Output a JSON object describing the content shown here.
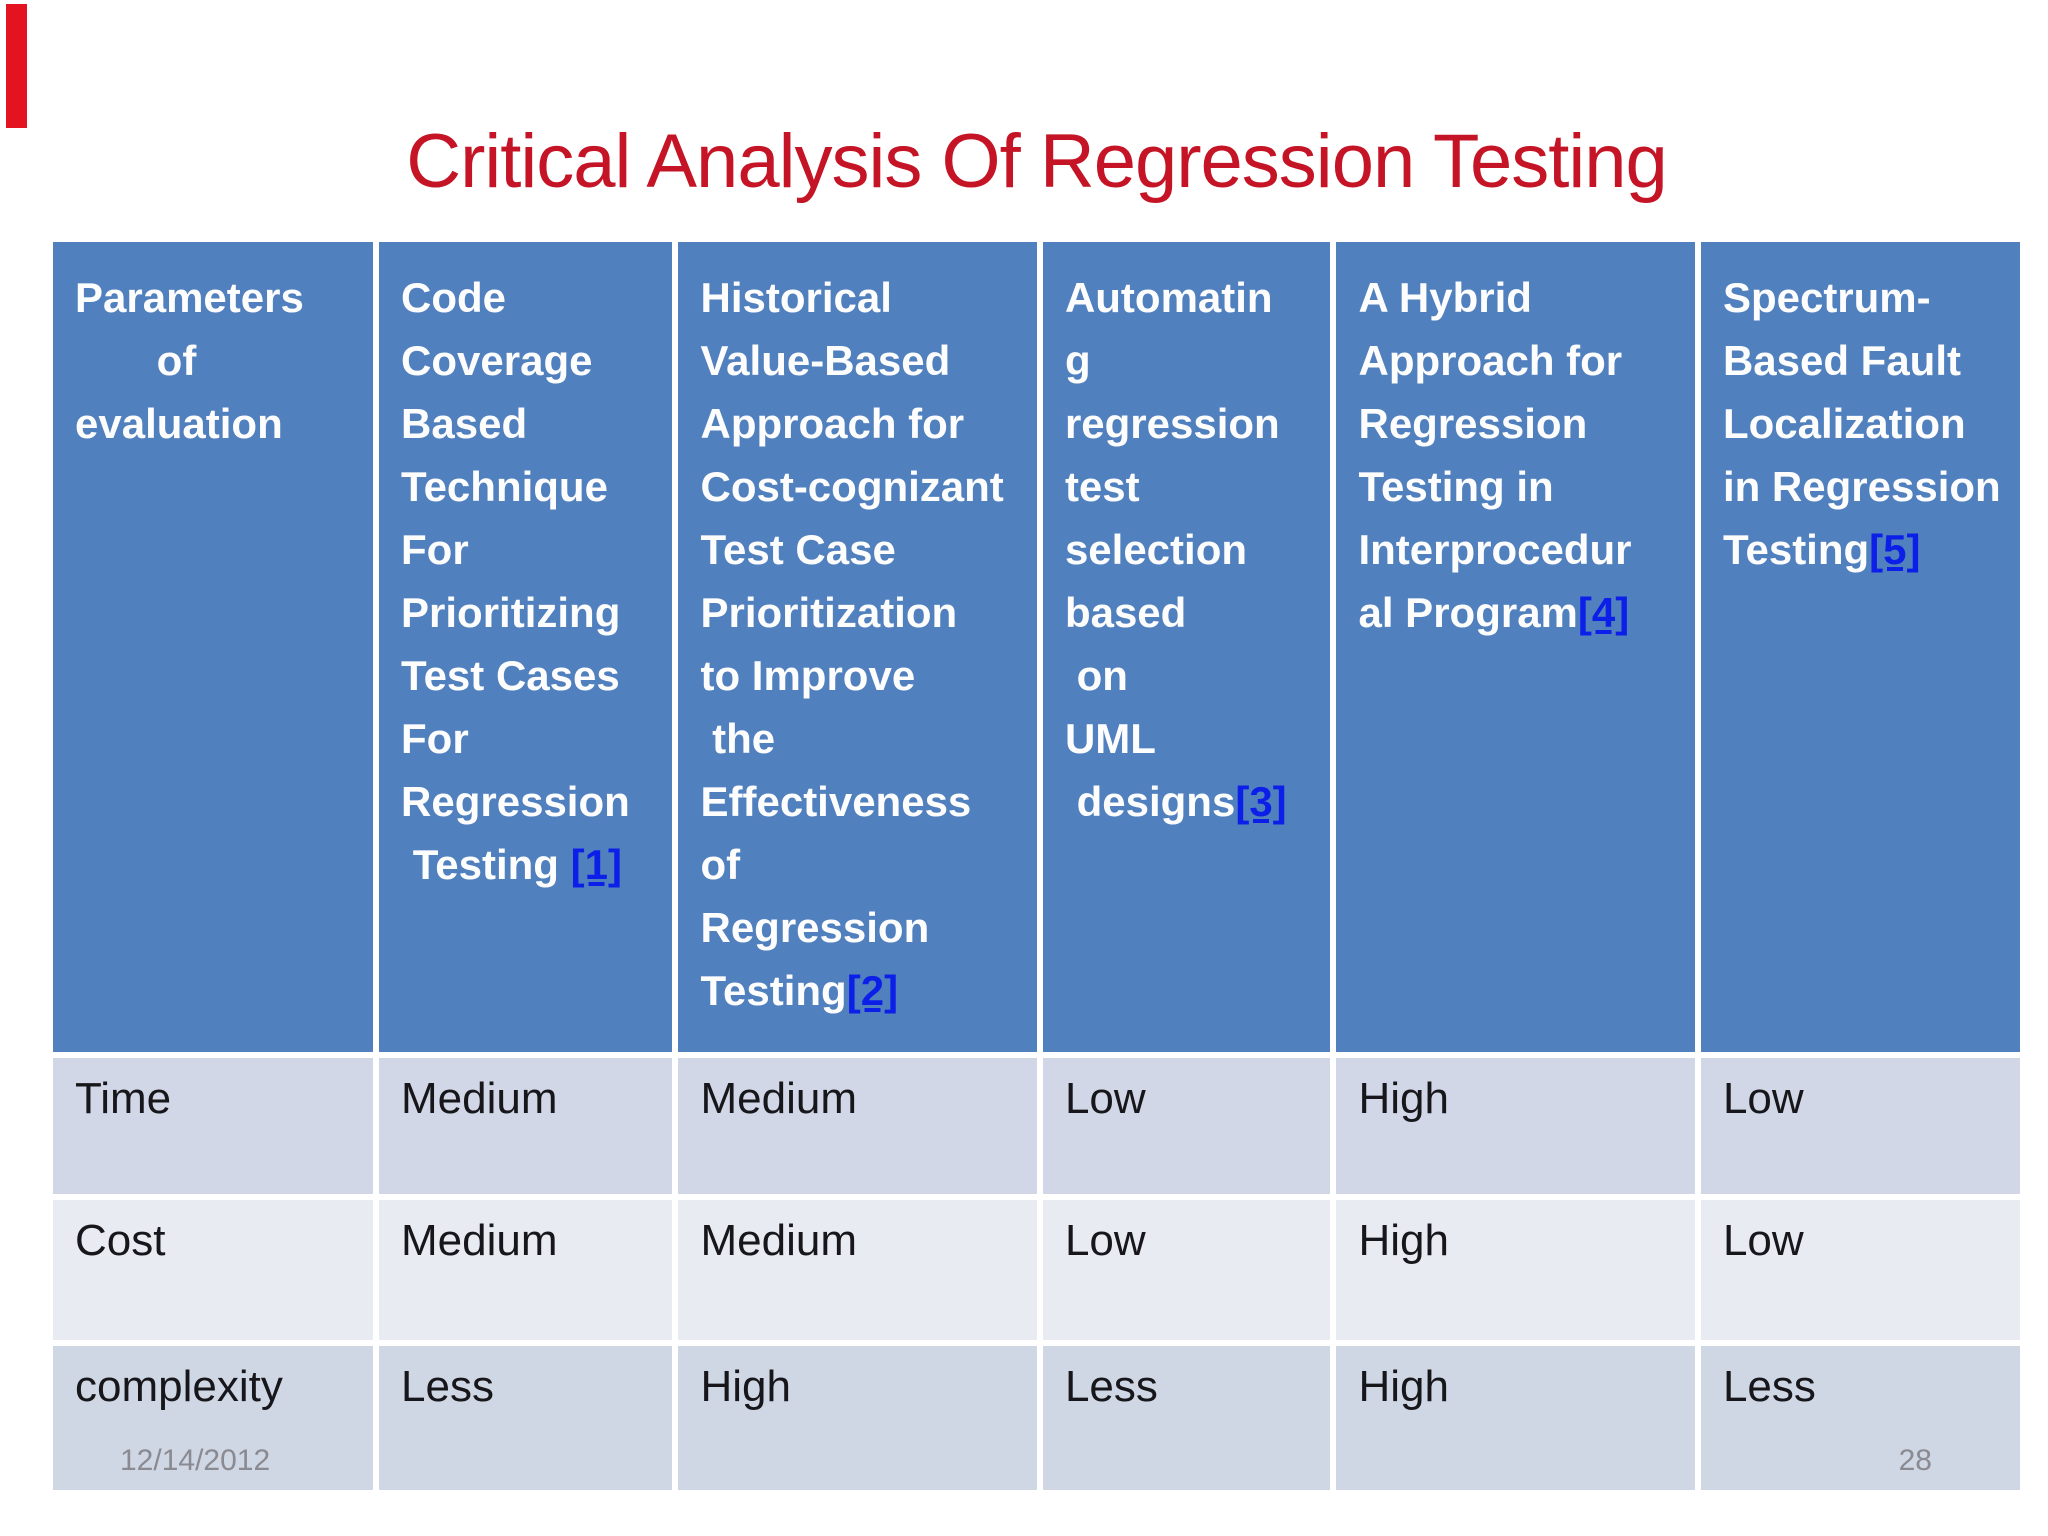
{
  "slide": {
    "title": "Critical Analysis Of Regression Testing",
    "footer": {
      "date": "12/14/2012",
      "page": "28"
    }
  },
  "colors": {
    "accent_bar": "#e3131f",
    "title_color": "#c41425",
    "header_bg": "#5180be",
    "link_color": "#0c1fe8",
    "row_bg_a": "#d1d7e6",
    "row_bg_b": "#e9ebf3",
    "row_bg_c": "#cfd7e5",
    "body_text": "#17171b",
    "footer_text": "#8a8a90"
  },
  "table": {
    "columns": [
      {
        "text": "Parameters\n       of\nevaluation",
        "ref": ""
      },
      {
        "text": "Code\nCoverage\nBased\nTechnique\nFor\nPrioritizing\nTest Cases\nFor\nRegression\n Testing ",
        "ref": "[1]"
      },
      {
        "text": "Historical\nValue-Based\nApproach for\nCost-cognizant\nTest Case\nPrioritization\nto Improve\n the\nEffectiveness\nof\nRegression\nTesting",
        "ref": "[2]"
      },
      {
        "text": "Automatin\ng\nregression\ntest\nselection\nbased\n on\nUML\n designs",
        "ref": "[3]"
      },
      {
        "text": "A Hybrid\nApproach for\nRegression\nTesting in\nInterprocedur\nal Program",
        "ref": "[4]"
      },
      {
        "text": "Spectrum-\nBased Fault\nLocalization\nin Regression\nTesting",
        "ref": "[5]"
      }
    ],
    "rows": [
      {
        "label": "Time",
        "values": [
          "Medium",
          "Medium",
          "Low",
          "High",
          "Low"
        ]
      },
      {
        "label": "Cost",
        "values": [
          "Medium",
          "Medium",
          "Low",
          "High",
          "Low"
        ]
      },
      {
        "label": "complexity",
        "values": [
          "Less",
          "High",
          "Less",
          "High",
          "Less"
        ]
      }
    ]
  }
}
